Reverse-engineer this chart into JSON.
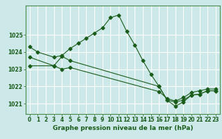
{
  "title": "Graphe pression niveau de la mer (hPa)",
  "background_color": "#cce8e8",
  "grid_color": "#ffffff",
  "line_color": "#1a5c1a",
  "xlim": [
    -0.5,
    23.5
  ],
  "ylim": [
    1020.4,
    1026.7
  ],
  "yticks": [
    1021,
    1022,
    1023,
    1024,
    1025
  ],
  "xticks": [
    0,
    1,
    2,
    3,
    4,
    5,
    6,
    7,
    8,
    9,
    10,
    11,
    12,
    13,
    14,
    15,
    16,
    17,
    18,
    19,
    20,
    21,
    22,
    23
  ],
  "series1_x": [
    0,
    1,
    3,
    4,
    5,
    6,
    7,
    8,
    9,
    10,
    11,
    12,
    13,
    14,
    15,
    16,
    17,
    18,
    19,
    20,
    21,
    22,
    23
  ],
  "series1_y": [
    1024.3,
    1024.0,
    1023.7,
    1023.8,
    1024.2,
    1024.5,
    1024.8,
    1025.1,
    1025.4,
    1026.0,
    1026.15,
    1025.2,
    1024.4,
    1023.5,
    1022.7,
    1022.0,
    1021.2,
    1020.85,
    1021.1,
    1021.5,
    1021.55,
    1021.75,
    1021.75
  ],
  "series2_x": [
    0,
    3,
    4,
    5,
    16,
    17,
    18,
    19,
    20,
    21,
    22,
    23
  ],
  "series2_y": [
    1023.7,
    1023.2,
    1023.75,
    1023.5,
    1022.0,
    1021.2,
    1021.1,
    1021.2,
    1021.5,
    1021.55,
    1021.75,
    1021.75
  ],
  "series3_x": [
    0,
    3,
    4,
    5,
    16,
    17,
    18,
    19,
    20,
    21,
    22,
    23
  ],
  "series3_y": [
    1023.2,
    1023.2,
    1023.0,
    1023.1,
    1021.7,
    1021.3,
    1021.15,
    1021.35,
    1021.65,
    1021.75,
    1021.85,
    1021.85
  ],
  "tick_fontsize": 5.5,
  "xlabel_fontsize": 6.5
}
